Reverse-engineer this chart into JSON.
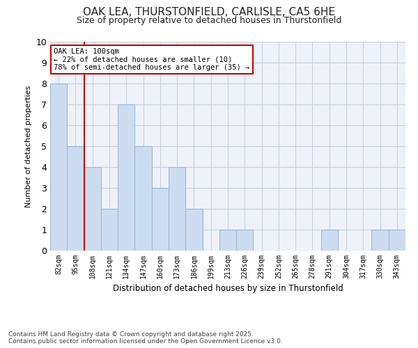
{
  "title_line1": "OAK LEA, THURSTONFIELD, CARLISLE, CA5 6HE",
  "title_line2": "Size of property relative to detached houses in Thurstonfield",
  "xlabel": "Distribution of detached houses by size in Thurstonfield",
  "ylabel": "Number of detached properties",
  "categories": [
    "82sqm",
    "95sqm",
    "108sqm",
    "121sqm",
    "134sqm",
    "147sqm",
    "160sqm",
    "173sqm",
    "186sqm",
    "199sqm",
    "213sqm",
    "226sqm",
    "239sqm",
    "252sqm",
    "265sqm",
    "278sqm",
    "291sqm",
    "304sqm",
    "317sqm",
    "330sqm",
    "343sqm"
  ],
  "values": [
    8,
    5,
    4,
    2,
    7,
    5,
    3,
    4,
    2,
    0,
    1,
    1,
    0,
    0,
    0,
    0,
    1,
    0,
    0,
    1,
    1
  ],
  "bar_color": "#ccdcf0",
  "bar_edge_color": "#9ab8d8",
  "vline_color": "#cc0000",
  "annotation_text": "OAK LEA: 100sqm\n← 22% of detached houses are smaller (10)\n78% of semi-detached houses are larger (35) →",
  "annotation_box_color": "#ffffff",
  "annotation_box_edge_color": "#cc0000",
  "ylim": [
    0,
    10
  ],
  "yticks": [
    0,
    1,
    2,
    3,
    4,
    5,
    6,
    7,
    8,
    9,
    10
  ],
  "footer_text": "Contains HM Land Registry data © Crown copyright and database right 2025.\nContains public sector information licensed under the Open Government Licence v3.0.",
  "bg_color": "#ffffff",
  "plot_bg_color": "#eef2f8",
  "grid_color": "#c8d0dc"
}
